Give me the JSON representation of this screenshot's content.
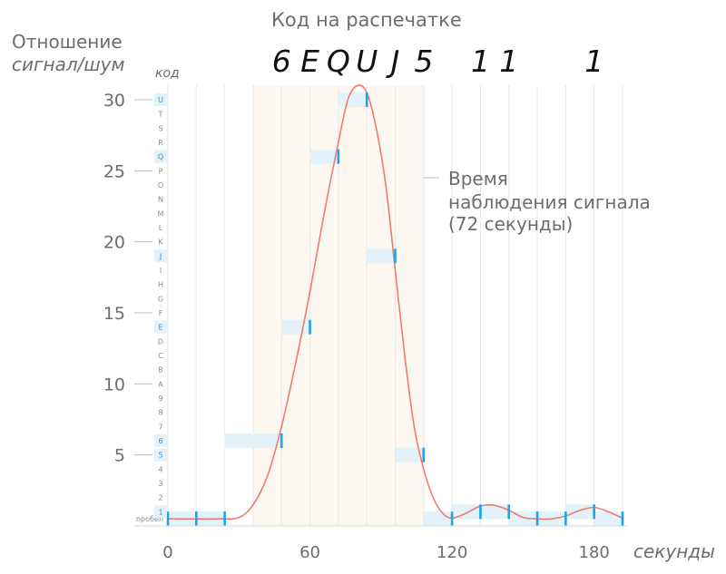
{
  "chart_data": {
    "type": "line",
    "title": "Код на распечатке",
    "printout_codes": [
      "6",
      "E",
      "Q",
      "U",
      "J",
      "5",
      "1",
      "1",
      "1"
    ],
    "ylabel_line1": "Отношение",
    "ylabel_line2": "сигнал/шум",
    "code_axis_label": "код",
    "xlabel": "секунды",
    "annotation": [
      "Время",
      "наблюдения сигнала",
      "(72 секунды)"
    ],
    "x_ticks": [
      0,
      60,
      120,
      180
    ],
    "y_ticks": [
      5,
      10,
      15,
      20,
      25,
      30
    ],
    "xlim": [
      0,
      192
    ],
    "ylim": [
      0,
      31.5
    ],
    "code_scale": [
      "пробел",
      "1",
      "2",
      "3",
      "4",
      "5",
      "6",
      "7",
      "8",
      "9",
      "A",
      "B",
      "C",
      "D",
      "E",
      "F",
      "G",
      "H",
      "I",
      "J",
      "K",
      "L",
      "M",
      "N",
      "O",
      "P",
      "Q",
      "R",
      "S",
      "T",
      "U"
    ],
    "highlighted_codes": [
      "1",
      "5",
      "6",
      "E",
      "J",
      "Q",
      "U"
    ],
    "observation_window": [
      36,
      108
    ],
    "measurements": [
      {
        "t": 0,
        "code": "пробел",
        "value": 0.5
      },
      {
        "t": 12,
        "code": "пробел",
        "value": 0.5
      },
      {
        "t": 24,
        "code": "пробел",
        "value": 0.5
      },
      {
        "t": 48,
        "code": "6",
        "value": 6.4
      },
      {
        "t": 60,
        "code": "E",
        "value": 14.6
      },
      {
        "t": 72,
        "code": "Q",
        "value": 26.3
      },
      {
        "t": 84,
        "code": "U",
        "value": 30.4
      },
      {
        "t": 96,
        "code": "J",
        "value": 19.7
      },
      {
        "t": 108,
        "code": "5",
        "value": 5.5
      },
      {
        "t": 120,
        "code": "пробел",
        "value": 0.5
      },
      {
        "t": 132,
        "code": "1",
        "value": 1.5
      },
      {
        "t": 144,
        "code": "1",
        "value": 1.5
      },
      {
        "t": 156,
        "code": "пробел",
        "value": 0.5
      },
      {
        "t": 168,
        "code": "пробел",
        "value": 0.5
      },
      {
        "t": 180,
        "code": "1",
        "value": 1.5
      },
      {
        "t": 192,
        "code": "пробел",
        "value": 0.5
      }
    ],
    "curve": {
      "x": [
        0,
        20,
        30,
        36,
        42,
        48,
        54,
        60,
        66,
        72,
        76,
        80,
        84,
        88,
        92,
        96,
        100,
        104,
        108,
        112,
        116,
        120,
        126,
        132,
        138,
        144,
        150,
        156,
        162,
        168,
        174,
        180,
        186,
        192
      ],
      "y": [
        0.5,
        0.5,
        0.6,
        1.5,
        3.5,
        7,
        11.5,
        16.5,
        22,
        27,
        30,
        31,
        30.5,
        28,
        24,
        18,
        12,
        7,
        4,
        2,
        0.9,
        0.55,
        0.9,
        1.4,
        1.45,
        1.1,
        0.6,
        0.5,
        0.5,
        0.7,
        1.1,
        1.3,
        1.0,
        0.55
      ]
    },
    "colors": {
      "curve": "#f07a72",
      "tick_marks": "#1aa6e8",
      "interval_fill": "#e2f2f8",
      "window_fill": "#fdf8ef",
      "grid": "#e8e8e8",
      "text": "#6d6d6d"
    }
  }
}
